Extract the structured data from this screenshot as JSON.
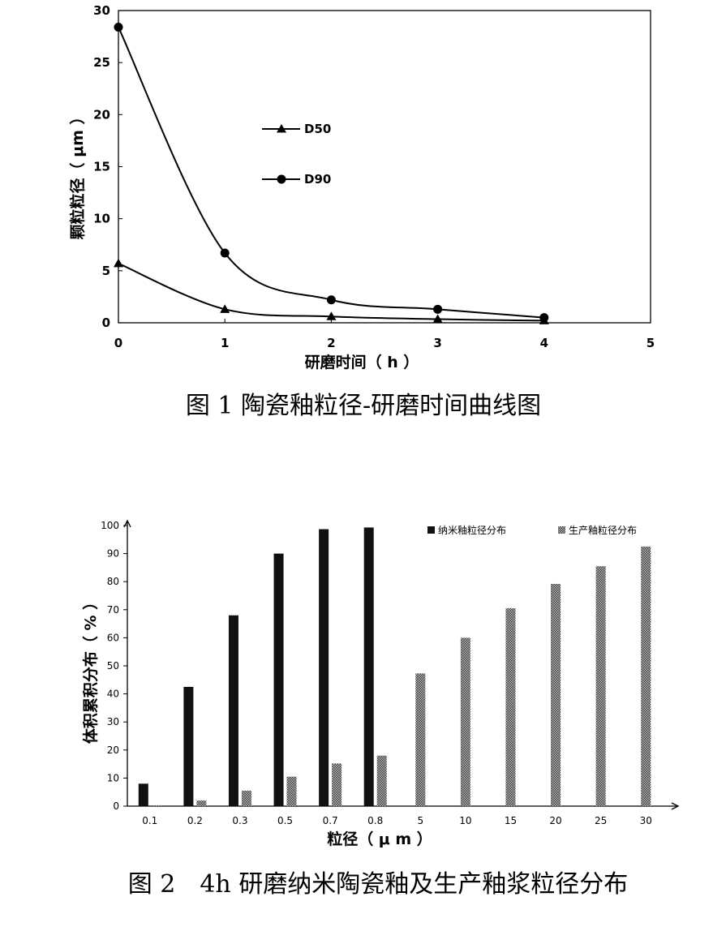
{
  "figure1": {
    "caption": "图 1 陶瓷釉粒径-研磨时间曲线图",
    "chart_data": {
      "type": "line",
      "xlabel": "研磨时间（ h ）",
      "ylabel": "颗粒粒径（ μm ）",
      "xlim": [
        0,
        5
      ],
      "ylim": [
        0,
        30
      ],
      "x_ticks": [
        "0",
        "1",
        "2",
        "3",
        "4",
        "5"
      ],
      "y_ticks": [
        "0",
        "5",
        "10",
        "15",
        "20",
        "25",
        "30"
      ],
      "grid": false,
      "legend_position": "center",
      "series": [
        {
          "name": "D50",
          "marker": "triangle",
          "x": [
            0,
            1,
            2,
            3,
            4
          ],
          "y": [
            5.7,
            1.3,
            0.6,
            0.35,
            0.2
          ]
        },
        {
          "name": "D90",
          "marker": "circle",
          "x": [
            0,
            1,
            2,
            3,
            4
          ],
          "y": [
            28.4,
            6.7,
            2.2,
            1.3,
            0.5
          ]
        }
      ]
    }
  },
  "figure2": {
    "caption": "图 2　4h 研磨纳米陶瓷釉及生产釉浆粒径分布",
    "chart_data": {
      "type": "bar",
      "xlabel": "粒径（ μ m ）",
      "ylabel": "体积累积分布（ % ）",
      "ylim": [
        0,
        100
      ],
      "y_ticks": [
        "0",
        "10",
        "20",
        "30",
        "40",
        "50",
        "60",
        "70",
        "80",
        "90",
        "100"
      ],
      "categories": [
        "0.1",
        "0.2",
        "0.3",
        "0.5",
        "0.7",
        "0.8",
        "5",
        "10",
        "15",
        "20",
        "25",
        "30"
      ],
      "grid": false,
      "legend_position": "top-right",
      "series": [
        {
          "name": "纳米釉粒径分布",
          "color": "#111111",
          "values": [
            8,
            42.5,
            68,
            90,
            98.7,
            99.3,
            null,
            null,
            null,
            null,
            null,
            null
          ]
        },
        {
          "name": "生产釉粒径分布",
          "color": "#8a8a8a",
          "pattern": "crosshatch",
          "values": [
            0.3,
            2,
            5.5,
            10.5,
            15.2,
            18,
            47.3,
            60,
            70.5,
            79.2,
            85.5,
            92.5
          ]
        }
      ]
    }
  }
}
